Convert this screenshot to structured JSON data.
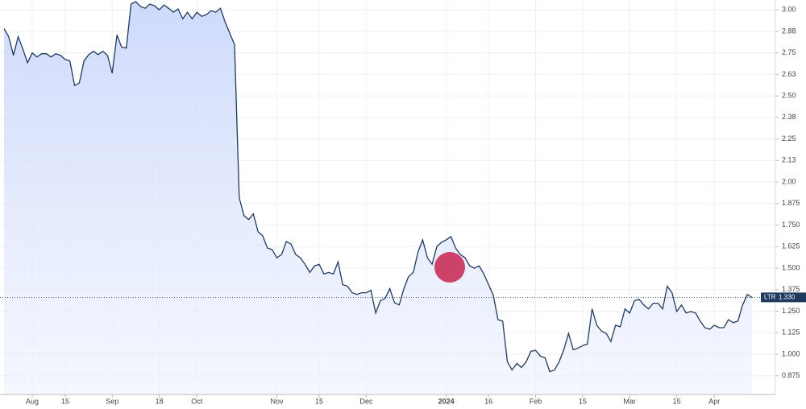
{
  "chart_data": {
    "type": "line",
    "series": [
      {
        "name": "LTR",
        "color": "#1f3a5f",
        "values": [
          2.891,
          2.844,
          2.736,
          2.844,
          2.773,
          2.693,
          2.75,
          2.726,
          2.745,
          2.745,
          2.726,
          2.745,
          2.736,
          2.712,
          2.703,
          2.561,
          2.575,
          2.703,
          2.74,
          2.759,
          2.74,
          2.759,
          2.736,
          2.632,
          2.854,
          2.783,
          2.778,
          3.033,
          3.047,
          3.019,
          3.009,
          3.033,
          3.024,
          3.0,
          3.028,
          3.009,
          2.986,
          3.005,
          2.948,
          2.986,
          2.948,
          2.986,
          2.962,
          2.972,
          2.995,
          2.986,
          3.009,
          2.929,
          2.863,
          2.797,
          1.909,
          1.805,
          1.782,
          1.815,
          1.711,
          1.687,
          1.617,
          1.607,
          1.56,
          1.579,
          1.654,
          1.64,
          1.579,
          1.56,
          1.522,
          1.475,
          1.513,
          1.522,
          1.466,
          1.475,
          1.466,
          1.536,
          1.404,
          1.395,
          1.357,
          1.347,
          1.357,
          1.357,
          1.371,
          1.239,
          1.31,
          1.324,
          1.381,
          1.3,
          1.286,
          1.381,
          1.451,
          1.475,
          1.593,
          1.664,
          1.56,
          1.522,
          1.626,
          1.65,
          1.664,
          1.683,
          1.617,
          1.579,
          1.56,
          1.513,
          1.499,
          1.513,
          1.466,
          1.404,
          1.343,
          1.201,
          1.192,
          0.956,
          0.908,
          0.946,
          0.923,
          0.956,
          1.017,
          1.022,
          0.989,
          0.979,
          0.899,
          0.908,
          0.956,
          1.026,
          1.121,
          1.026,
          1.036,
          1.05,
          1.059,
          1.263,
          1.168,
          1.135,
          1.121,
          1.074,
          1.168,
          1.159,
          1.263,
          1.239,
          1.31,
          1.319,
          1.286,
          1.263,
          1.296,
          1.296,
          1.263,
          1.395,
          1.357,
          1.248,
          1.286,
          1.239,
          1.248,
          1.239,
          1.192,
          1.154,
          1.145,
          1.168,
          1.154,
          1.154,
          1.201,
          1.183,
          1.192,
          1.286,
          1.347,
          1.33
        ]
      }
    ],
    "last_price": {
      "value": 1.33,
      "label": "1.330"
    },
    "xlim": [
      0,
      159
    ],
    "xticks": [
      {
        "value": 6,
        "label": "Aug"
      },
      {
        "value": 13,
        "label": "15"
      },
      {
        "value": 23,
        "label": "Sep"
      },
      {
        "value": 33,
        "label": "18"
      },
      {
        "value": 41,
        "label": "Oct"
      },
      {
        "value": 58,
        "label": "Nov"
      },
      {
        "value": 67,
        "label": "15"
      },
      {
        "value": 77,
        "label": "Dec"
      },
      {
        "value": 94,
        "label": "2024"
      },
      {
        "value": 103,
        "label": "16"
      },
      {
        "value": 113,
        "label": "Feb"
      },
      {
        "value": 123,
        "label": "15"
      },
      {
        "value": 133,
        "label": "Mar"
      },
      {
        "value": 143,
        "label": "15"
      },
      {
        "value": 151,
        "label": "Apr"
      }
    ],
    "ylim": [
      0.766,
      3.057
    ],
    "yticks": [
      {
        "value": 3.0,
        "label": "3.00"
      },
      {
        "value": 2.875,
        "label": "2.88"
      },
      {
        "value": 2.75,
        "label": "2.75"
      },
      {
        "value": 2.625,
        "label": "2.63"
      },
      {
        "value": 2.5,
        "label": "2.50"
      },
      {
        "value": 2.375,
        "label": "2.38"
      },
      {
        "value": 2.25,
        "label": "2.25"
      },
      {
        "value": 2.125,
        "label": "2.13"
      },
      {
        "value": 2.0,
        "label": "2.00"
      },
      1.875,
      {
        "value": 1.75,
        "label": "1.750"
      },
      1.625,
      {
        "value": 1.5,
        "label": "1.500"
      },
      1.375,
      {
        "value": 1.25,
        "label": "1.250"
      },
      1.125,
      {
        "value": 1.0,
        "label": "1.000"
      },
      0.875
    ],
    "grid": true
  }
}
